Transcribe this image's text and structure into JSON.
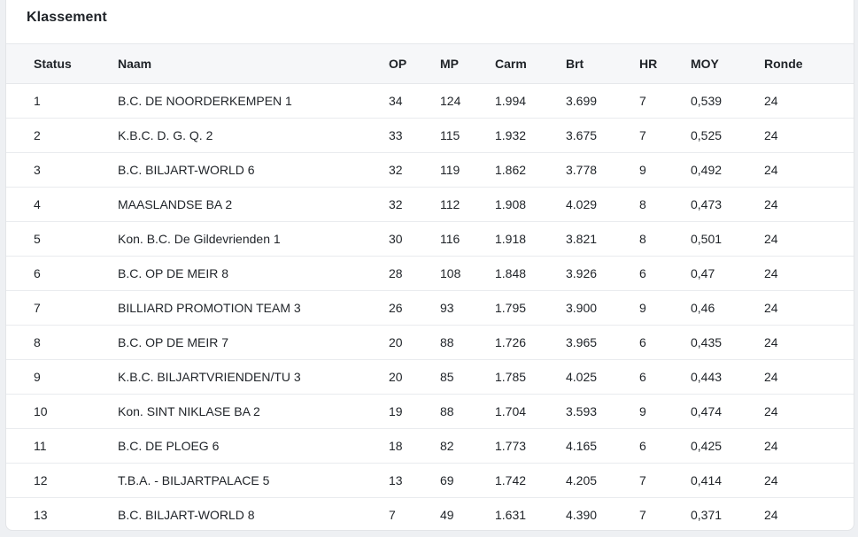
{
  "card": {
    "title": "Klassement"
  },
  "table": {
    "columns": [
      "Status",
      "Naam",
      "OP",
      "MP",
      "Carm",
      "Brt",
      "HR",
      "MOY",
      "Ronde"
    ],
    "rows": [
      [
        "1",
        "B.C. DE NOORDERKEMPEN 1",
        "34",
        "124",
        "1.994",
        "3.699",
        "7",
        "0,539",
        "24"
      ],
      [
        "2",
        "K.B.C. D. G. Q. 2",
        "33",
        "115",
        "1.932",
        "3.675",
        "7",
        "0,525",
        "24"
      ],
      [
        "3",
        "B.C. BILJART-WORLD 6",
        "32",
        "119",
        "1.862",
        "3.778",
        "9",
        "0,492",
        "24"
      ],
      [
        "4",
        "MAASLANDSE BA 2",
        "32",
        "112",
        "1.908",
        "4.029",
        "8",
        "0,473",
        "24"
      ],
      [
        "5",
        "Kon. B.C. De Gildevrienden 1",
        "30",
        "116",
        "1.918",
        "3.821",
        "8",
        "0,501",
        "24"
      ],
      [
        "6",
        "B.C. OP DE MEIR 8",
        "28",
        "108",
        "1.848",
        "3.926",
        "6",
        "0,47",
        "24"
      ],
      [
        "7",
        "BILLIARD PROMOTION TEAM 3",
        "26",
        "93",
        "1.795",
        "3.900",
        "9",
        "0,46",
        "24"
      ],
      [
        "8",
        "B.C. OP DE MEIR 7",
        "20",
        "88",
        "1.726",
        "3.965",
        "6",
        "0,435",
        "24"
      ],
      [
        "9",
        "K.B.C. BILJARTVRIENDEN/TU 3",
        "20",
        "85",
        "1.785",
        "4.025",
        "6",
        "0,443",
        "24"
      ],
      [
        "10",
        "Kon. SINT NIKLASE BA 2",
        "19",
        "88",
        "1.704",
        "3.593",
        "9",
        "0,474",
        "24"
      ],
      [
        "11",
        "B.C. DE PLOEG 6",
        "18",
        "82",
        "1.773",
        "4.165",
        "6",
        "0,425",
        "24"
      ],
      [
        "12",
        "T.B.A. - BILJARTPALACE 5",
        "13",
        "69",
        "1.742",
        "4.205",
        "7",
        "0,414",
        "24"
      ],
      [
        "13",
        "B.C. BILJART-WORLD 8",
        "7",
        "49",
        "1.631",
        "4.390",
        "7",
        "0,371",
        "24"
      ]
    ]
  }
}
